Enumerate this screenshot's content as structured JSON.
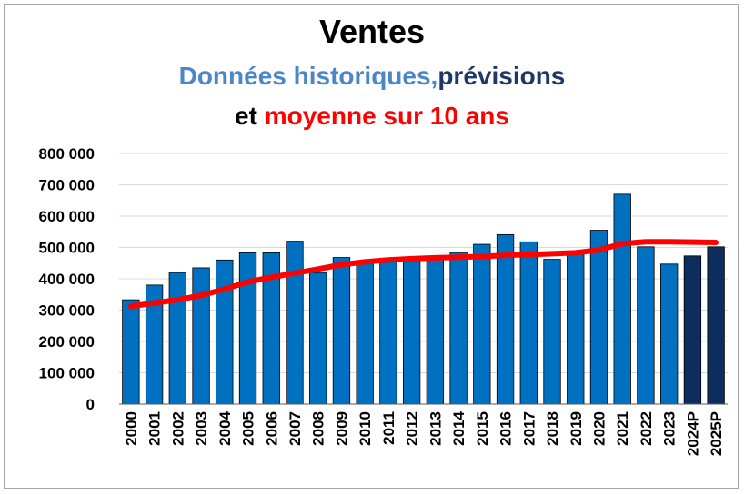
{
  "chart_data": {
    "type": "bar",
    "title": "Ventes",
    "subtitle_parts": [
      {
        "text": "Données historiques,",
        "color": "#4a86c8"
      },
      {
        "text": "prévisions",
        "color": "#1f3864"
      }
    ],
    "subtitle2_parts": [
      {
        "text": "et",
        "color": "#000000"
      },
      {
        "text": "moyenne sur 10 ans",
        "color": "#ff0000"
      }
    ],
    "categories": [
      "2000",
      "2001",
      "2002",
      "2003",
      "2004",
      "2005",
      "2006",
      "2007",
      "2008",
      "2009",
      "2010",
      "2011",
      "2012",
      "2013",
      "2014",
      "2015",
      "2016",
      "2017",
      "2018",
      "2019",
      "2020",
      "2021",
      "2022",
      "2023",
      "2024P",
      "2025P"
    ],
    "values": [
      333000,
      380000,
      420000,
      435000,
      460000,
      483000,
      483000,
      520000,
      420000,
      468000,
      458000,
      464000,
      462000,
      467000,
      484000,
      510000,
      541000,
      518000,
      462000,
      487000,
      555000,
      670000,
      502000,
      447000,
      473000,
      502000
    ],
    "bar_colors": {
      "historical": "#0070c0",
      "forecast": "#0d2d5e"
    },
    "forecast_categories": [
      "2024P",
      "2025P"
    ],
    "moving_average": {
      "color": "#ff0000",
      "values": [
        312000,
        323000,
        333000,
        347000,
        367000,
        390000,
        405000,
        418000,
        431000,
        445000,
        454000,
        460000,
        464000,
        467000,
        469000,
        471000,
        475000,
        477000,
        480000,
        483000,
        492000,
        512000,
        518000,
        518000,
        517000,
        516000
      ]
    },
    "ylim": [
      0,
      800000
    ],
    "yticks": [
      0,
      100000,
      200000,
      300000,
      400000,
      500000,
      600000,
      700000,
      800000
    ],
    "ytick_labels": [
      "0",
      "100 000",
      "200 000",
      "300 000",
      "400 000",
      "500 000",
      "600 000",
      "700 000",
      "800 000"
    ],
    "grid": true
  }
}
